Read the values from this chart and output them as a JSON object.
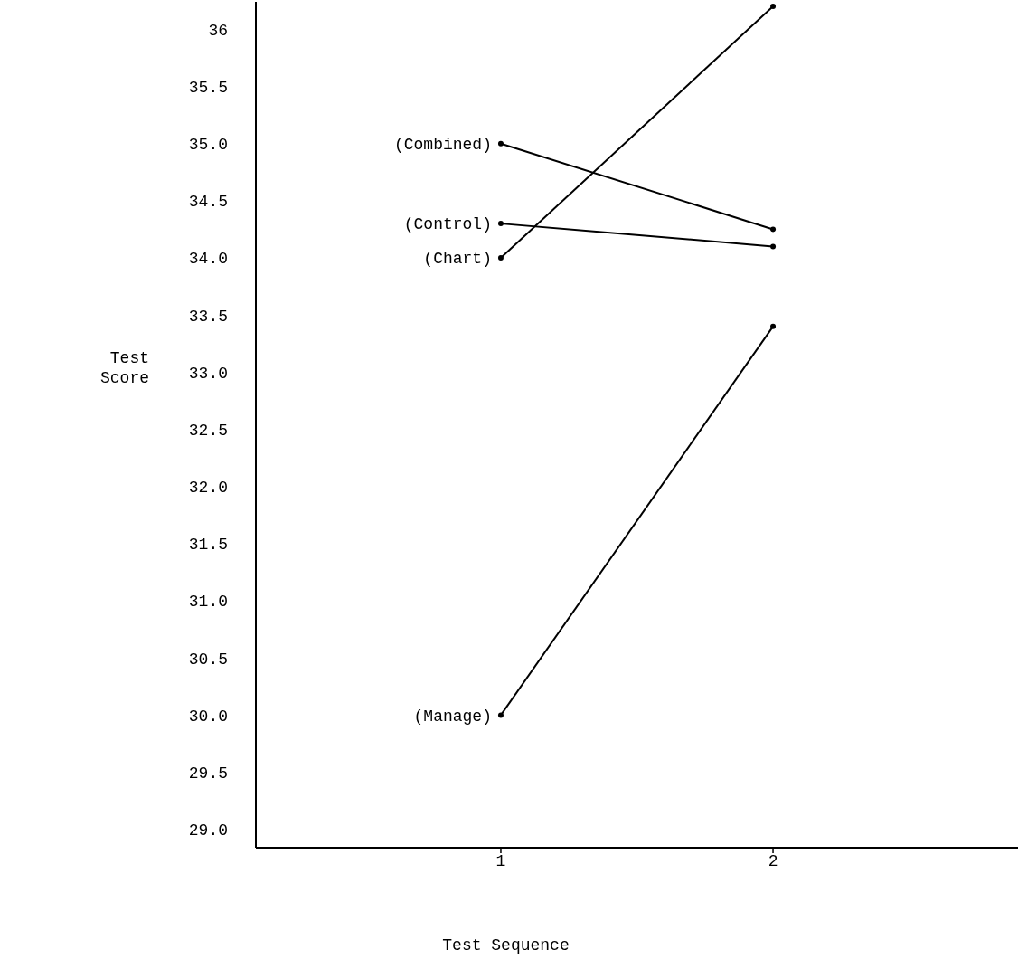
{
  "chart_data": {
    "type": "line",
    "xlabel": "Test Sequence",
    "ylabel": "Test Score",
    "x": [
      1,
      2
    ],
    "xlim": [
      0.1,
      2.9
    ],
    "xticks": [
      1,
      2
    ],
    "ylim": [
      28.84,
      36.24
    ],
    "yticks": [
      {
        "value": 29,
        "label": "29.0"
      },
      {
        "value": 29.5,
        "label": "29.5"
      },
      {
        "value": 30,
        "label": "30.0"
      },
      {
        "value": 30.5,
        "label": "30.5"
      },
      {
        "value": 31,
        "label": "31.0"
      },
      {
        "value": 31.5,
        "label": "31.5"
      },
      {
        "value": 32,
        "label": "32.0"
      },
      {
        "value": 32.5,
        "label": "32.5"
      },
      {
        "value": 33,
        "label": "33.0"
      },
      {
        "value": 33.5,
        "label": "33.5"
      },
      {
        "value": 34,
        "label": "34.0"
      },
      {
        "value": 34.5,
        "label": "34.5"
      },
      {
        "value": 35,
        "label": "35.0"
      },
      {
        "value": 35.5,
        "label": "35.5"
      },
      36
    ],
    "marker": "circle",
    "line_style": "solid",
    "grid": false,
    "series": [
      {
        "name": "(Combined)",
        "color": "#000000",
        "values": [
          35.0,
          34.25
        ]
      },
      {
        "name": "(Control)",
        "color": "#000000",
        "values": [
          34.3,
          34.1
        ]
      },
      {
        "name": "(Chart)",
        "color": "#000000",
        "values": [
          34.0,
          36.2
        ]
      },
      {
        "name": "(Manage)",
        "color": "#000000",
        "values": [
          30.0,
          33.4
        ]
      }
    ]
  }
}
